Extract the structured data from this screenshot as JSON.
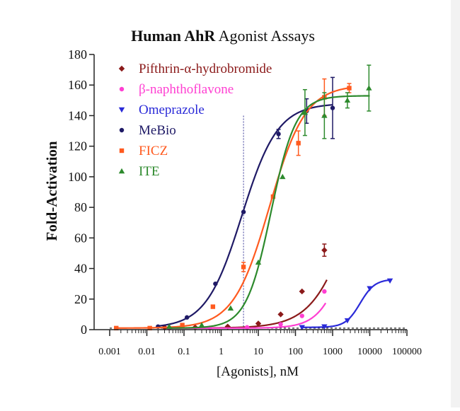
{
  "chart_data": {
    "type": "scatter",
    "title_bold": "Human AhR",
    "title_rest": " Agonist Assays",
    "xlabel": "[Agonists], nM",
    "ylabel": "Fold-Activation",
    "xscale": "log",
    "xlim": [
      0.001,
      100000
    ],
    "ylim": [
      0,
      180
    ],
    "xticks": [
      {
        "value": 0.001,
        "label": "0.001"
      },
      {
        "value": 0.01,
        "label": "0.01"
      },
      {
        "value": 0.1,
        "label": "0.1"
      },
      {
        "value": 1,
        "label": "1"
      },
      {
        "value": 10,
        "label": "10"
      },
      {
        "value": 100,
        "label": "100"
      },
      {
        "value": 1000,
        "label": "1000"
      },
      {
        "value": 10000,
        "label": "10000"
      },
      {
        "value": 100000,
        "label": "100000"
      }
    ],
    "yticks": [
      {
        "value": 0,
        "label": "0"
      },
      {
        "value": 20,
        "label": "20"
      },
      {
        "value": 40,
        "label": "40"
      },
      {
        "value": 60,
        "label": "60"
      },
      {
        "value": 80,
        "label": "80"
      },
      {
        "value": 100,
        "label": "100"
      },
      {
        "value": 120,
        "label": "120"
      },
      {
        "value": 140,
        "label": "140"
      },
      {
        "value": 160,
        "label": "160"
      },
      {
        "value": 180,
        "label": "180"
      }
    ],
    "baseline_y": 1,
    "reference_line_x": 4,
    "legend_position": "top-left",
    "series": [
      {
        "name": "Pifthrin-α-hydrobromide",
        "color": "#8b1a1a",
        "marker": "diamond",
        "points": [
          {
            "x": 0.03,
            "y": 1.5,
            "err": 0
          },
          {
            "x": 0.2,
            "y": 1.5,
            "err": 0
          },
          {
            "x": 1.5,
            "y": 2,
            "err": 0
          },
          {
            "x": 10,
            "y": 4,
            "err": 0
          },
          {
            "x": 40,
            "y": 10,
            "err": 0
          },
          {
            "x": 150,
            "y": 25,
            "err": 0
          },
          {
            "x": 600,
            "y": 52,
            "err": 4
          }
        ],
        "curve": {
          "bottom": 1,
          "top": 160,
          "ec50": 4000,
          "hill": 0.8,
          "xmin": 0.03,
          "xmax": 700
        }
      },
      {
        "name": "β-naphthoflavone",
        "color": "#ff3fd2",
        "marker": "circle",
        "points": [
          {
            "x": 0.04,
            "y": 1,
            "err": 0
          },
          {
            "x": 0.5,
            "y": 1.2,
            "err": 0
          },
          {
            "x": 5,
            "y": 1.5,
            "err": 0
          },
          {
            "x": 40,
            "y": 3.5,
            "err": 0
          },
          {
            "x": 150,
            "y": 9,
            "err": 0
          },
          {
            "x": 600,
            "y": 25,
            "err": 0
          }
        ],
        "curve": {
          "bottom": 1,
          "top": 100,
          "ec50": 2500,
          "hill": 1.2,
          "xmin": 0.04,
          "xmax": 650
        }
      },
      {
        "name": "Omeprazole",
        "color": "#2a2ad8",
        "marker": "triangle-down",
        "points": [
          {
            "x": 150,
            "y": 1.5,
            "err": 0
          },
          {
            "x": 600,
            "y": 2,
            "err": 0
          },
          {
            "x": 2500,
            "y": 6,
            "err": 0
          },
          {
            "x": 10000,
            "y": 27,
            "err": 0
          },
          {
            "x": 35000,
            "y": 32,
            "err": 0
          }
        ],
        "curve": {
          "bottom": 1.5,
          "top": 33,
          "ec50": 5500,
          "hill": 2.2,
          "xmin": 150,
          "xmax": 35000
        }
      },
      {
        "name": "MeBio",
        "color": "#1f1a66",
        "marker": "circle",
        "points": [
          {
            "x": 0.02,
            "y": 2,
            "err": 0
          },
          {
            "x": 0.12,
            "y": 8,
            "err": 0
          },
          {
            "x": 0.7,
            "y": 30,
            "err": 0
          },
          {
            "x": 4,
            "y": 77,
            "err": 0
          },
          {
            "x": 35,
            "y": 128,
            "err": 3
          },
          {
            "x": 200,
            "y": 143,
            "err": 8
          },
          {
            "x": 1000,
            "y": 145,
            "err": 20
          }
        ],
        "curve": {
          "bottom": 1,
          "top": 148,
          "ec50": 3.6,
          "hill": 0.9,
          "xmin": 0.02,
          "xmax": 1000
        }
      },
      {
        "name": "FICZ",
        "color": "#ff5a1f",
        "marker": "square",
        "points": [
          {
            "x": 0.0015,
            "y": 1,
            "err": 0
          },
          {
            "x": 0.012,
            "y": 1,
            "err": 0
          },
          {
            "x": 0.09,
            "y": 3,
            "err": 0
          },
          {
            "x": 0.6,
            "y": 15,
            "err": 0
          },
          {
            "x": 4,
            "y": 41,
            "err": 3
          },
          {
            "x": 25,
            "y": 87,
            "err": 0
          },
          {
            "x": 120,
            "y": 122,
            "err": 8
          },
          {
            "x": 600,
            "y": 152,
            "err": 12
          },
          {
            "x": 2800,
            "y": 158,
            "err": 3
          }
        ],
        "curve": {
          "bottom": 1,
          "top": 160,
          "ec50": 20,
          "hill": 0.9,
          "xmin": 0.0015,
          "xmax": 3000
        }
      },
      {
        "name": "ITE",
        "color": "#2d8a2d",
        "marker": "triangle-up",
        "points": [
          {
            "x": 0.04,
            "y": 2,
            "err": 0
          },
          {
            "x": 0.3,
            "y": 3,
            "err": 0
          },
          {
            "x": 1.8,
            "y": 14,
            "err": 0
          },
          {
            "x": 10,
            "y": 44,
            "err": 0
          },
          {
            "x": 45,
            "y": 100,
            "err": 0
          },
          {
            "x": 180,
            "y": 142,
            "err": 15
          },
          {
            "x": 600,
            "y": 140,
            "err": 15
          },
          {
            "x": 2500,
            "y": 150,
            "err": 5
          },
          {
            "x": 9500,
            "y": 158,
            "err": 15
          }
        ],
        "curve": {
          "bottom": 1,
          "top": 153,
          "ec50": 22,
          "hill": 1.3,
          "xmin": 0.04,
          "xmax": 10000
        }
      }
    ]
  }
}
